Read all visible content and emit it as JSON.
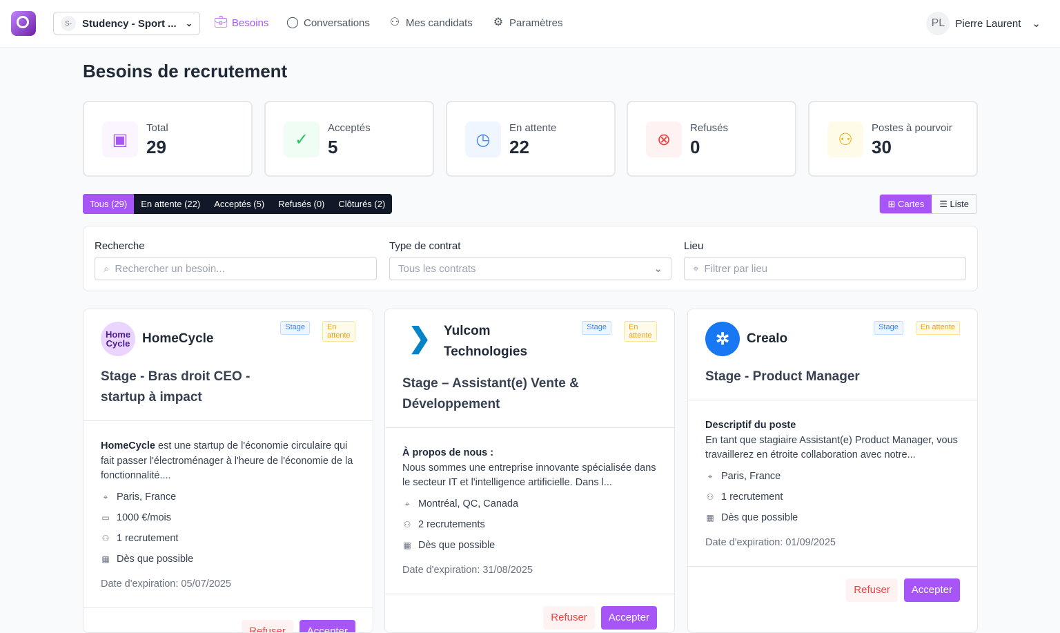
{
  "header": {
    "org_initial": "S-",
    "org_name": "Studency - Sport ...",
    "nav": [
      {
        "label": "Besoins",
        "icon": "briefcase-icon",
        "active": true
      },
      {
        "label": "Conversations",
        "icon": "chat-icon"
      },
      {
        "label": "Mes candidats",
        "icon": "users-icon"
      },
      {
        "label": "Paramètres",
        "icon": "gear-icon"
      }
    ],
    "user_initials": "PL",
    "user_name": "Pierre Laurent"
  },
  "page_title": "Besoins de recrutement",
  "stats": [
    {
      "label": "Total",
      "value": "29",
      "icon": "briefcase-icon",
      "color": "#a855f7"
    },
    {
      "label": "Acceptés",
      "value": "5",
      "icon": "check-circle-icon",
      "color": "#22c55e"
    },
    {
      "label": "En attente",
      "value": "22",
      "icon": "clock-icon",
      "color": "#3b82f6"
    },
    {
      "label": "Refusés",
      "value": "0",
      "icon": "x-circle-icon",
      "color": "#ef4444"
    },
    {
      "label": "Postes à pourvoir",
      "value": "30",
      "icon": "users-icon",
      "color": "#eab308"
    }
  ],
  "tabs": [
    "Tous (29)",
    "En attente (22)",
    "Acceptés (5)",
    "Refusés (0)",
    "Clôturés (2)"
  ],
  "view": {
    "cards": "Cartes",
    "list": "Liste"
  },
  "filters": {
    "search_label": "Recherche",
    "search_placeholder": "Rechercher un besoin...",
    "contract_label": "Type de contrat",
    "contract_value": "Tous les contrats",
    "location_label": "Lieu",
    "location_placeholder": "Filtrer par lieu"
  },
  "cards": [
    {
      "company": "HomeCycle",
      "logo_text": "Home Cycle",
      "badge_type": "Stage",
      "badge_status": "En attente",
      "title": "Stage - Bras droit CEO - startup à impact",
      "desc_bold": "HomeCycle",
      "desc": " est une startup de l'économie circulaire qui fait passer l'électroménager à l'heure de l'économie de la fonctionnalité....",
      "location": "Paris, France",
      "salary": "1000 €/mois",
      "recruits": "1 recrutement",
      "start": "Dès que possible",
      "expiry": "Date d'expiration: 05/07/2025",
      "refuse": "Refuser",
      "accept": "Accepter"
    },
    {
      "company": "Yulcom Technologies",
      "badge_type": "Stage",
      "badge_status": "En attente",
      "title": "Stage – Assistant(e) Vente & Développement",
      "desc_bold": "À propos de nous :",
      "desc": "Nous sommes une entreprise innovante spécialisée dans le secteur IT et l'intelligence artificielle. Dans l...",
      "location": "Montréal, QC, Canada",
      "recruits": "2 recrutements",
      "start": "Dès que possible",
      "expiry": "Date d'expiration: 31/08/2025",
      "refuse": "Refuser",
      "accept": "Accepter"
    },
    {
      "company": "Crealo",
      "badge_type": "Stage",
      "badge_status": "En attente",
      "title": "Stage - Product Manager",
      "desc_bold": "Descriptif du poste",
      "desc": "En tant que stagiaire Assistant(e) Product Manager, vous travaillerez en étroite collaboration avec notre...",
      "location": "Paris, France",
      "recruits": "1 recrutement",
      "start": "Dès que possible",
      "expiry": "Date d'expiration: 01/09/2025",
      "refuse": "Refuser",
      "accept": "Accepter"
    }
  ]
}
